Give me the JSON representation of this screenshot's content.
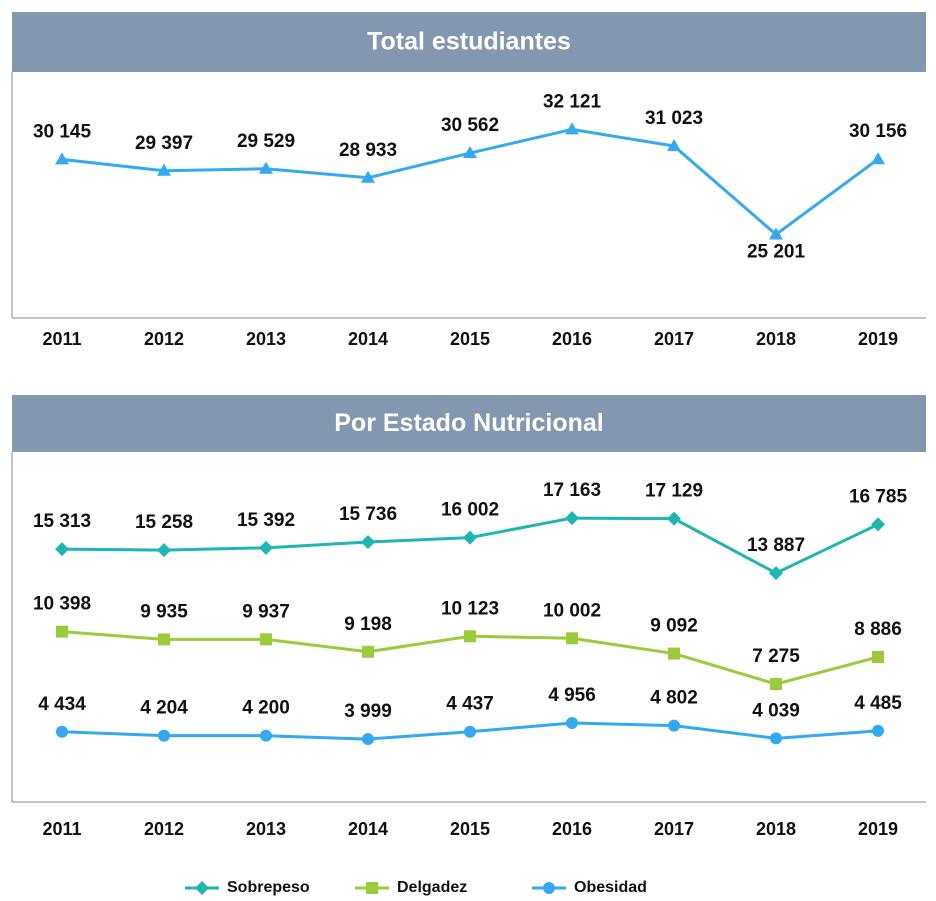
{
  "chart_data": [
    {
      "type": "line",
      "title": "Total estudiantes",
      "categories": [
        "2011",
        "2012",
        "2013",
        "2014",
        "2015",
        "2016",
        "2017",
        "2018",
        "2019"
      ],
      "ylim": [
        19700,
        35900
      ],
      "series": [
        {
          "color": "#33a9f0",
          "marker": "triangle",
          "values": [
            30145,
            29397,
            29529,
            28933,
            30562,
            32121,
            31023,
            25201,
            30156
          ],
          "value_labels": [
            "30 145",
            "29 397",
            "29 529",
            "28 933",
            "30 562",
            "32 121",
            "31 023",
            "25 201",
            "30 156"
          ]
        }
      ]
    },
    {
      "type": "line",
      "title": "Por Estado Nutricional",
      "categories": [
        "2011",
        "2012",
        "2013",
        "2014",
        "2015",
        "2016",
        "2017",
        "2018",
        "2019"
      ],
      "ylim": [
        250,
        21100
      ],
      "legend": "bottom",
      "series": [
        {
          "name": "Sobrepeso",
          "color": "#1fb5b0",
          "marker": "diamond",
          "values": [
            15313,
            15258,
            15392,
            15736,
            16002,
            17163,
            17129,
            13887,
            16785
          ],
          "value_labels": [
            "15 313",
            "15 258",
            "15 392",
            "15 736",
            "16 002",
            "17 163",
            "17 129",
            "13 887",
            "16 785"
          ]
        },
        {
          "name": "Delgadez",
          "color": "#9bcb3b",
          "marker": "square",
          "values": [
            10398,
            9935,
            9937,
            9198,
            10123,
            10002,
            9092,
            7275,
            8886
          ],
          "value_labels": [
            "10 398",
            "9 935",
            "9 937",
            "9 198",
            "10 123",
            "10 002",
            "9 092",
            "7 275",
            "8 886"
          ]
        },
        {
          "name": "Obesidad",
          "color": "#33a9f0",
          "marker": "circle",
          "values": [
            4434,
            4204,
            4200,
            3999,
            4437,
            4956,
            4802,
            4039,
            4485
          ],
          "value_labels": [
            "4 434",
            "4 204",
            "4 200",
            "3 999",
            "4 437",
            "4 956",
            "4 802",
            "4 039",
            "4 485"
          ]
        }
      ]
    }
  ]
}
